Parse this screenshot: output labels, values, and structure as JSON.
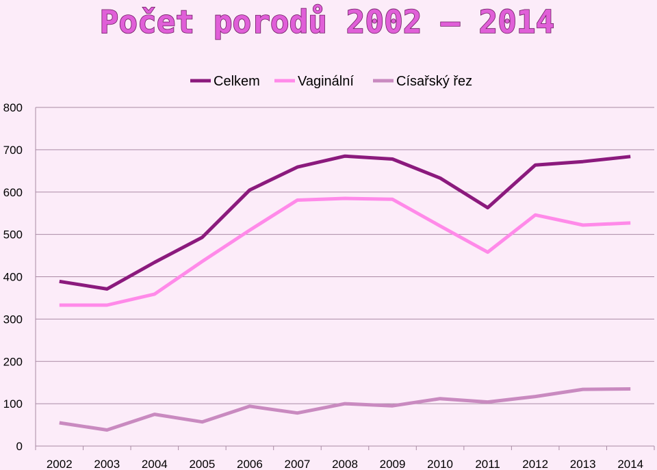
{
  "chart_data": {
    "type": "line",
    "title": "Počet porodů 2002 – 2014",
    "xlabel": "",
    "ylabel": "",
    "categories": [
      "2002",
      "2003",
      "2004",
      "2005",
      "2006",
      "2007",
      "2008",
      "2009",
      "2010",
      "2011",
      "2012",
      "2013",
      "2014"
    ],
    "ylim": [
      0,
      800
    ],
    "yticks": [
      0,
      100,
      200,
      300,
      400,
      500,
      600,
      700,
      800
    ],
    "grid": true,
    "legend_position": "top",
    "series": [
      {
        "name": "Celkem",
        "color": "#8b1a7d",
        "values": [
          389,
          371,
          434,
          493,
          605,
          659,
          685,
          678,
          633,
          563,
          664,
          672,
          684
        ]
      },
      {
        "name": "Vaginální",
        "color": "#ff8ae9",
        "values": [
          333,
          333,
          359,
          436,
          510,
          581,
          585,
          583,
          520,
          458,
          546,
          522,
          527
        ]
      },
      {
        "name": "Císařský řez",
        "color": "#c98ac0",
        "values": [
          55,
          38,
          75,
          57,
          94,
          78,
          100,
          95,
          112,
          104,
          117,
          134,
          135
        ]
      }
    ]
  }
}
